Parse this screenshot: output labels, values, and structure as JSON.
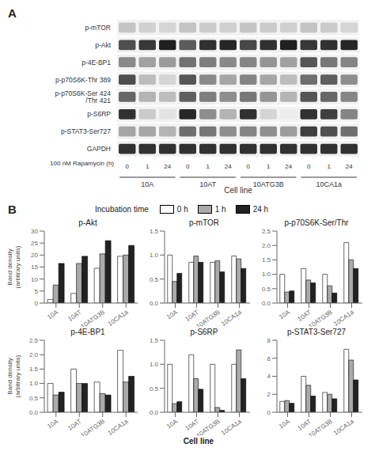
{
  "chart_data": [
    {
      "type": "heatmap",
      "panel": "A",
      "x_categories": [
        "0",
        "1",
        "24",
        "0",
        "1",
        "24",
        "0",
        "1",
        "24",
        "0",
        "1",
        "24"
      ],
      "groups": [
        "10A",
        "10AT",
        "10ATG3B",
        "10CA1a"
      ],
      "y_categories": [
        "p-mTOR",
        "p-Akt",
        "p-4E-BP1",
        "p-p70S6K-Thr 389",
        "p-p70S6K-Ser 424 /Thr 421",
        "p-S6RP",
        "p-STAT3-Ser727",
        "GAPDH"
      ],
      "cells": [
        [
          0.25,
          0.2,
          0.18,
          0.25,
          0.22,
          0.2,
          0.25,
          0.22,
          0.2,
          0.25,
          0.22,
          0.18
        ],
        [
          0.75,
          0.85,
          0.95,
          0.7,
          0.88,
          0.92,
          0.78,
          0.88,
          0.95,
          0.85,
          0.88,
          0.92
        ],
        [
          0.5,
          0.4,
          0.42,
          0.6,
          0.55,
          0.5,
          0.52,
          0.45,
          0.4,
          0.72,
          0.58,
          0.52
        ],
        [
          0.75,
          0.28,
          0.18,
          0.72,
          0.5,
          0.38,
          0.52,
          0.38,
          0.28,
          0.62,
          0.68,
          0.48
        ],
        [
          0.65,
          0.32,
          0.28,
          0.68,
          0.55,
          0.48,
          0.58,
          0.45,
          0.32,
          0.72,
          0.65,
          0.52
        ],
        [
          0.88,
          0.22,
          0.12,
          0.92,
          0.48,
          0.32,
          0.88,
          0.18,
          0.08,
          0.88,
          0.82,
          0.52
        ],
        [
          0.38,
          0.38,
          0.32,
          0.62,
          0.58,
          0.48,
          0.52,
          0.48,
          0.42,
          0.82,
          0.75,
          0.62
        ],
        [
          0.88,
          0.88,
          0.88,
          0.88,
          0.88,
          0.88,
          0.88,
          0.88,
          0.88,
          0.88,
          0.88,
          0.88
        ]
      ],
      "xlabel": "Cell line",
      "annotations": [
        "100 nM Rapamycin (h)"
      ]
    },
    {
      "type": "bar",
      "panel": "B",
      "legend": "top",
      "legend_title": "Incubation time",
      "grid": false,
      "title": "p-Akt",
      "ylabel": "Band density\n(arbitrary units)",
      "categories": [
        "10A",
        "10AT",
        "10ATG3B",
        "10CA1a"
      ],
      "series": [
        {
          "name": "0 h",
          "color": "#ffffff",
          "values": [
            1.5,
            4.0,
            14.5,
            19.5
          ]
        },
        {
          "name": "1 h",
          "color": "#aaaaaa",
          "values": [
            7.5,
            16.5,
            20.5,
            20.0
          ]
        },
        {
          "name": "24 h",
          "color": "#222222",
          "values": [
            16.5,
            19.5,
            26.0,
            24.0
          ]
        }
      ],
      "ylim": [
        0,
        30
      ],
      "yticks": [
        0,
        5,
        10,
        15,
        20,
        25,
        30
      ]
    },
    {
      "type": "bar",
      "grid": false,
      "title": "p-mTOR",
      "categories": [
        "10A",
        "10AT",
        "10ATG3B",
        "10CA1a"
      ],
      "series": [
        {
          "name": "0 h",
          "color": "#ffffff",
          "values": [
            1.0,
            0.85,
            0.85,
            0.98
          ]
        },
        {
          "name": "1 h",
          "color": "#aaaaaa",
          "values": [
            0.45,
            0.98,
            0.88,
            0.92
          ]
        },
        {
          "name": "24 h",
          "color": "#222222",
          "values": [
            0.62,
            0.85,
            0.65,
            0.72
          ]
        }
      ],
      "ylim": [
        0,
        1.5
      ],
      "yticks": [
        {
          "value": 0,
          "label": "0.0"
        },
        0.5,
        {
          "value": 1,
          "label": "1.0"
        },
        1.5
      ]
    },
    {
      "type": "bar",
      "grid": false,
      "title": "p-p70S6K-Ser/Thr",
      "categories": [
        "10A",
        "10AT",
        "10ATG3B",
        "10CA1a"
      ],
      "series": [
        {
          "name": "0 h",
          "color": "#ffffff",
          "values": [
            1.0,
            1.2,
            1.0,
            2.1
          ]
        },
        {
          "name": "1 h",
          "color": "#aaaaaa",
          "values": [
            0.38,
            0.8,
            0.6,
            1.5
          ]
        },
        {
          "name": "24 h",
          "color": "#222222",
          "values": [
            0.42,
            0.7,
            0.35,
            1.2
          ]
        }
      ],
      "ylim": [
        0,
        2.5
      ],
      "yticks": [
        {
          "value": 0,
          "label": "0.0"
        },
        0.5,
        {
          "value": 1,
          "label": "1.0"
        },
        1.5,
        {
          "value": 2,
          "label": "2.0"
        },
        2.5
      ]
    },
    {
      "type": "bar",
      "grid": false,
      "title": "p-4E-BP1",
      "ylabel": "Band density\n(arbitrary units)",
      "categories": [
        "10A",
        "10AT",
        "10ATG3B",
        "10CA1a"
      ],
      "series": [
        {
          "name": "0 h",
          "color": "#ffffff",
          "values": [
            1.0,
            1.5,
            1.05,
            2.15
          ]
        },
        {
          "name": "1 h",
          "color": "#aaaaaa",
          "values": [
            0.6,
            1.0,
            0.65,
            1.05
          ]
        },
        {
          "name": "24 h",
          "color": "#222222",
          "values": [
            0.7,
            1.0,
            0.6,
            1.25
          ]
        }
      ],
      "ylim": [
        0,
        2.5
      ],
      "yticks": [
        {
          "value": 0,
          "label": "0.0"
        },
        0.5,
        {
          "value": 1,
          "label": "1.0"
        },
        1.5,
        {
          "value": 2,
          "label": "2.0"
        },
        2.5
      ]
    },
    {
      "type": "bar",
      "grid": false,
      "title": "p-S6RP",
      "xlabel": "Cell line",
      "categories": [
        "10A",
        "10AT",
        "10ATG3B",
        "10CA1a"
      ],
      "series": [
        {
          "name": "0 h",
          "color": "#ffffff",
          "values": [
            1.0,
            1.2,
            1.0,
            1.0
          ]
        },
        {
          "name": "1 h",
          "color": "#aaaaaa",
          "values": [
            0.18,
            0.7,
            0.1,
            1.3
          ]
        },
        {
          "name": "24 h",
          "color": "#222222",
          "values": [
            0.22,
            0.48,
            0.04,
            0.7
          ]
        }
      ],
      "ylim": [
        0,
        1.5
      ],
      "yticks": [
        {
          "value": 0,
          "label": "0.0"
        },
        0.5,
        {
          "value": 1,
          "label": "1.0"
        },
        1.5
      ]
    },
    {
      "type": "bar",
      "grid": false,
      "title": "p-STAT3-Ser727",
      "categories": [
        "10A",
        "10AT",
        "10ATG3B",
        "10CA1a"
      ],
      "series": [
        {
          "name": "0 h",
          "color": "#ffffff",
          "values": [
            1.2,
            4.0,
            2.2,
            7.0
          ]
        },
        {
          "name": "1 h",
          "color": "#aaaaaa",
          "values": [
            1.3,
            3.0,
            2.0,
            5.8
          ]
        },
        {
          "name": "24 h",
          "color": "#222222",
          "values": [
            1.0,
            1.8,
            1.5,
            3.6
          ]
        }
      ],
      "ylim": [
        0,
        8.0
      ],
      "yticks": [
        0,
        2,
        4,
        6,
        8
      ]
    }
  ]
}
